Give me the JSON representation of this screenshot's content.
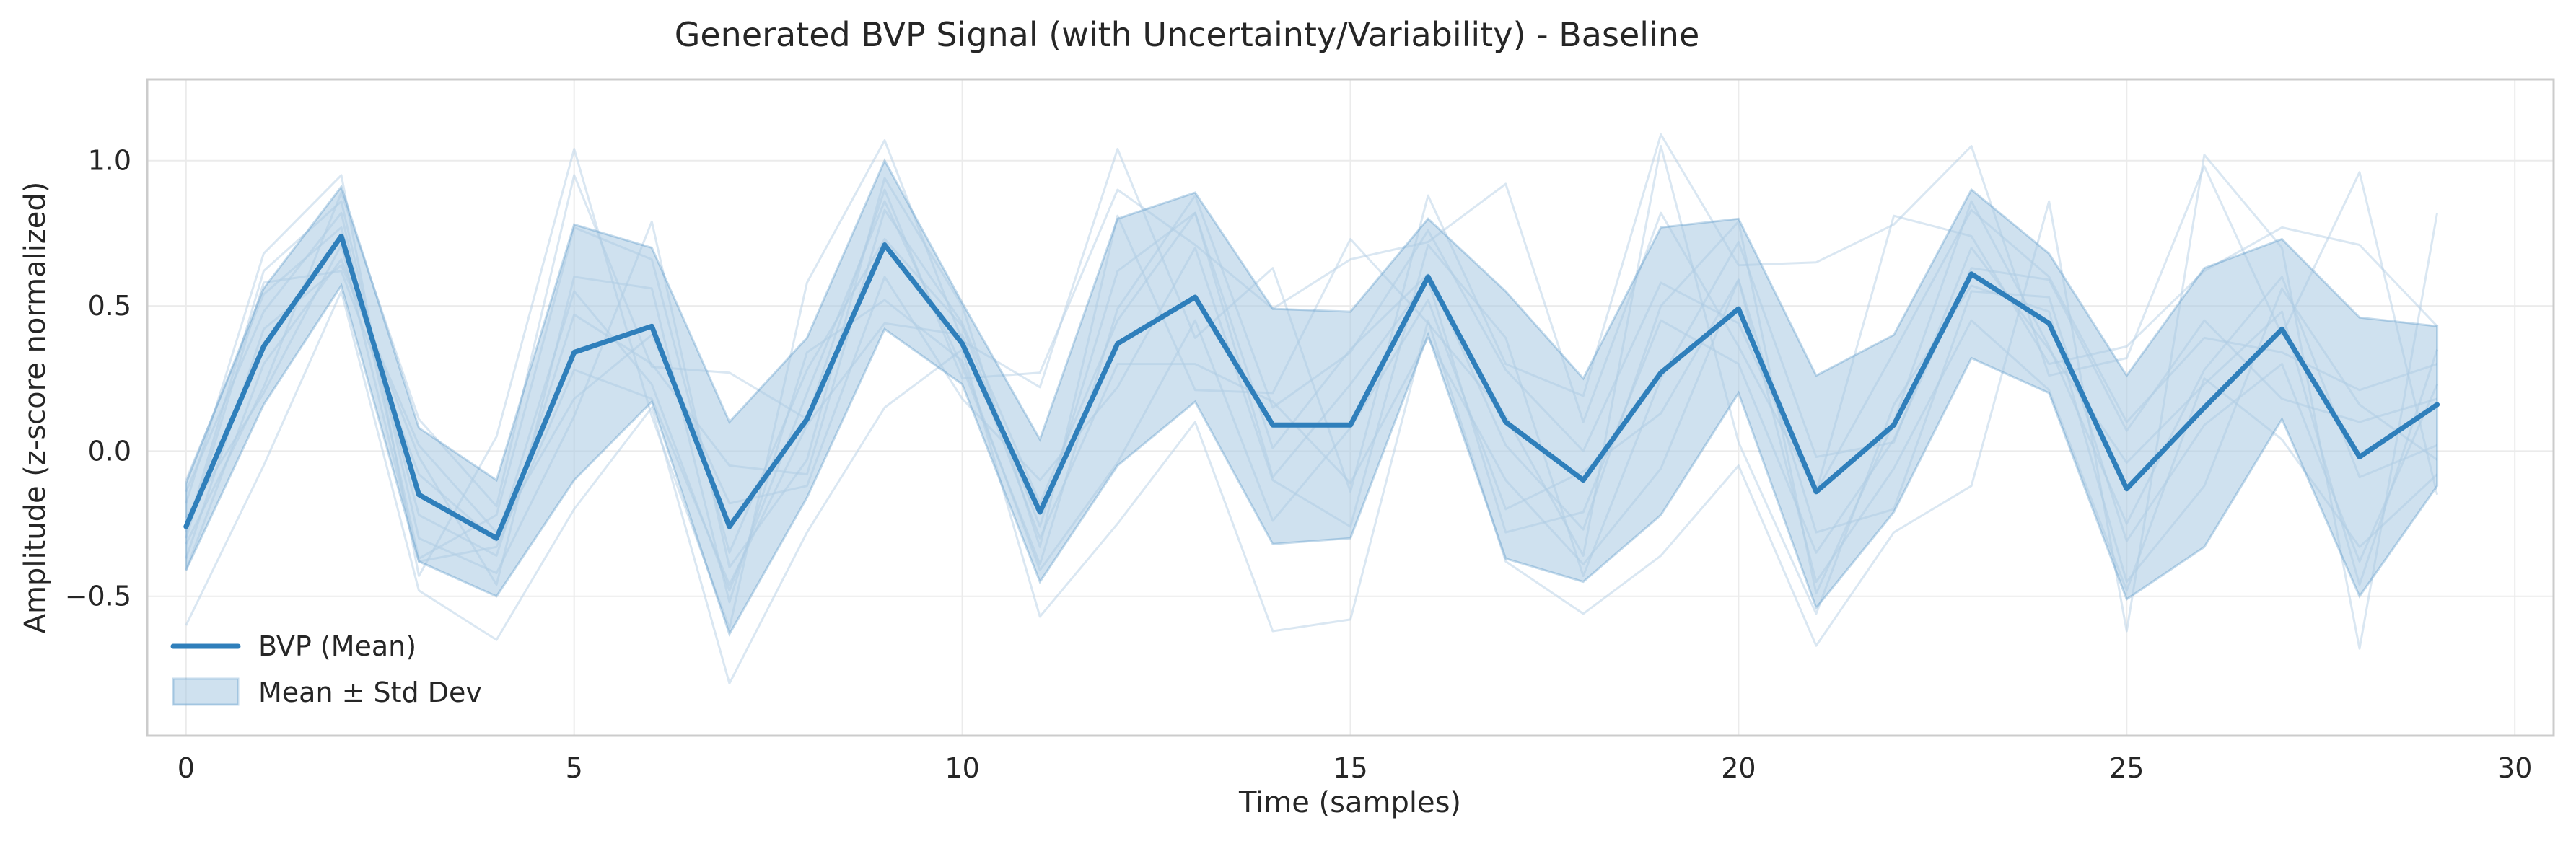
{
  "chart_data": {
    "type": "line",
    "title": "Generated BVP Signal (with Uncertainty/Variability) - Baseline",
    "xlabel": "Time (samples)",
    "ylabel": "Amplitude (z-score normalized)",
    "xlim": [
      -0.5,
      30.5
    ],
    "ylim": [
      -0.98,
      1.28
    ],
    "xticks": [
      0,
      5,
      10,
      15,
      20,
      25,
      30
    ],
    "yticks": [
      -0.5,
      0.0,
      0.5,
      1.0
    ],
    "grid": true,
    "legend_position": "lower-left",
    "colors": {
      "mean_line": "#2f7fbb",
      "band_fill": "#a8c8e2",
      "sample_lines": "#b5cfe6"
    },
    "x": [
      0,
      1,
      2,
      3,
      4,
      5,
      6,
      7,
      8,
      9,
      10,
      11,
      12,
      13,
      14,
      15,
      16,
      17,
      18,
      19,
      20,
      21,
      22,
      23,
      24,
      25,
      26,
      27,
      28,
      29
    ],
    "series": [
      {
        "name": "BVP (Mean)",
        "role": "mean",
        "values": [
          -0.26,
          0.36,
          0.74,
          -0.15,
          -0.3,
          0.34,
          0.43,
          -0.26,
          0.11,
          0.71,
          0.37,
          -0.21,
          0.37,
          0.53,
          0.09,
          0.09,
          0.6,
          0.1,
          -0.1,
          0.27,
          0.49,
          -0.14,
          0.09,
          0.61,
          0.44,
          -0.13,
          0.15,
          0.42,
          -0.02,
          0.16
        ]
      },
      {
        "name": "Mean ± Std Dev",
        "role": "band",
        "upper": [
          -0.11,
          0.56,
          0.91,
          0.08,
          -0.1,
          0.78,
          0.7,
          0.1,
          0.39,
          1.0,
          0.51,
          0.04,
          0.8,
          0.89,
          0.49,
          0.48,
          0.8,
          0.55,
          0.25,
          0.77,
          0.8,
          0.26,
          0.4,
          0.9,
          0.68,
          0.26,
          0.63,
          0.73,
          0.46,
          0.43
        ],
        "lower": [
          -0.41,
          0.16,
          0.57,
          -0.38,
          -0.5,
          -0.1,
          0.17,
          -0.63,
          -0.16,
          0.42,
          0.23,
          -0.45,
          -0.05,
          0.17,
          -0.32,
          -0.3,
          0.4,
          -0.37,
          -0.45,
          -0.22,
          0.2,
          -0.54,
          -0.21,
          0.32,
          0.2,
          -0.51,
          -0.33,
          0.11,
          -0.5,
          -0.12
        ]
      }
    ],
    "samples": [
      [
        -0.6,
        -0.05,
        0.55,
        -0.48,
        -0.65,
        -0.2,
        0.15,
        -0.8,
        -0.28,
        0.15,
        0.35,
        -0.57,
        -0.25,
        0.1,
        -0.62,
        -0.58,
        0.45,
        -0.38,
        -0.56,
        -0.36,
        -0.05,
        -0.67,
        -0.28,
        -0.12,
        0.86,
        -0.62,
        1.02,
        0.7,
        -0.68,
        0.82
      ],
      [
        -0.18,
        0.68,
        0.95,
        -0.43,
        0.05,
        1.04,
        0.12,
        -0.61,
        0.58,
        1.07,
        0.38,
        0.22,
        1.04,
        0.39,
        0.63,
        -0.14,
        0.88,
        0.3,
        0.19,
        1.09,
        0.64,
        0.65,
        0.78,
        1.05,
        0.26,
        0.32,
        0.98,
        0.4,
        0.96,
        -0.15
      ],
      [
        -0.32,
        0.22,
        0.89,
        0.11,
        -0.19,
        0.95,
        0.29,
        0.27,
        0.11,
        0.9,
        0.25,
        0.27,
        0.9,
        0.71,
        0.49,
        0.66,
        0.72,
        0.92,
        0.1,
        0.82,
        0.36,
        -0.14,
        0.81,
        0.74,
        0.3,
        0.36,
        0.62,
        0.77,
        0.71,
        0.43
      ],
      [
        -0.28,
        0.62,
        0.86,
        -0.3,
        -0.42,
        0.12,
        0.79,
        -0.4,
        -0.03,
        0.94,
        0.5,
        -0.33,
        0.81,
        0.21,
        0.2,
        0.73,
        0.44,
        0.12,
        -0.36,
        1.05,
        0.03,
        -0.56,
        0.16,
        0.57,
        0.48,
        -0.45,
        -0.12,
        0.56,
        0.16,
        -0.03
      ],
      [
        -0.41,
        0.3,
        0.66,
        -0.02,
        -0.46,
        0.6,
        0.56,
        -0.52,
        0.34,
        0.52,
        0.31,
        -0.41,
        -0.04,
        0.45,
        -0.24,
        0.08,
        0.52,
        -0.2,
        -0.07,
        0.13,
        0.59,
        -0.28,
        -0.2,
        0.55,
        0.53,
        -0.31,
        0.09,
        0.3,
        -0.38,
        0.23
      ],
      [
        -0.14,
        0.48,
        0.82,
        -0.37,
        -0.22,
        0.77,
        0.66,
        -0.35,
        0.28,
        0.73,
        0.43,
        -0.26,
        0.62,
        0.82,
        0.01,
        0.35,
        0.61,
        0.02,
        -0.27,
        0.5,
        0.79,
        -0.49,
        0.1,
        0.86,
        0.36,
        -0.25,
        0.28,
        0.6,
        -0.09,
        0.02
      ],
      [
        -0.37,
        0.42,
        0.64,
        0.02,
        -0.28,
        0.18,
        0.4,
        -0.18,
        -0.12,
        0.6,
        0.18,
        -0.1,
        0.22,
        0.7,
        -0.1,
        -0.26,
        0.71,
        0.39,
        -0.43,
        0.25,
        0.72,
        -0.02,
        0.03,
        0.7,
        0.35,
        -0.04,
        0.23,
        0.48,
        -0.46,
        0.35
      ],
      [
        -0.1,
        0.54,
        0.77,
        -0.22,
        -0.36,
        0.47,
        0.3,
        -0.05,
        -0.08,
        0.83,
        0.44,
        -0.18,
        0.45,
        0.82,
        -0.09,
        0.23,
        0.59,
        -0.28,
        -0.21,
        0.45,
        0.3,
        -0.35,
        0.04,
        0.63,
        0.59,
        0.07,
        0.45,
        0.18,
        0.1,
        0.18
      ],
      [
        -0.23,
        0.2,
        0.71,
        -0.38,
        -0.33,
        0.28,
        0.18,
        -0.46,
        0.09,
        0.44,
        0.4,
        -0.3,
        0.3,
        0.3,
        0.17,
        -0.11,
        0.39,
        -0.1,
        -0.39,
        -0.06,
        0.59,
        -0.45,
        -0.06,
        0.45,
        0.21,
        -0.48,
        0.25,
        0.04,
        -0.33,
        -0.08
      ],
      [
        -0.3,
        0.58,
        0.62,
        -0.08,
        -0.31,
        0.55,
        0.23,
        -0.48,
        0.2,
        0.86,
        0.29,
        -0.39,
        0.49,
        0.88,
        0.15,
        0.34,
        0.76,
        0.28,
        0.0,
        0.58,
        0.44,
        -0.14,
        0.34,
        0.83,
        0.6,
        0.1,
        0.39,
        0.34,
        0.21,
        0.3
      ]
    ]
  }
}
